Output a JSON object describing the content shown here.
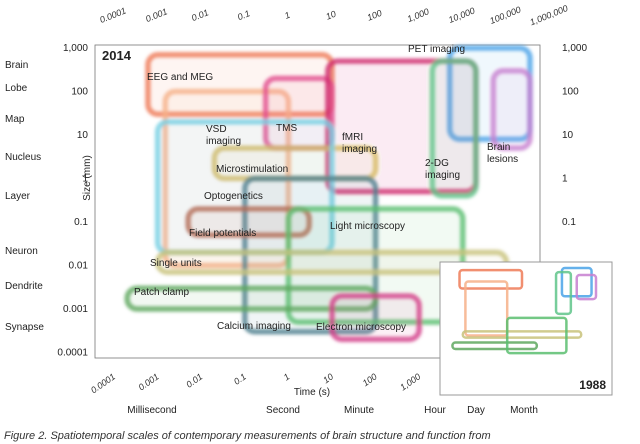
{
  "chart_data": {
    "type": "range-map",
    "panel_year": "2014",
    "inset_year": "1988",
    "xlabel": "Time (s)",
    "ylabel": "Size (mm)",
    "xlim": [
      0.0001,
      1000000
    ],
    "ylim": [
      0.0001,
      1000
    ],
    "log_scale": true,
    "top_ticks": [
      "0.0001",
      "0.001",
      "0.01",
      "0.1",
      "1",
      "10",
      "100",
      "1,000",
      "10,000",
      "100,000",
      "1,000,000"
    ],
    "bottom_ticks": [
      "0.0001",
      "0.001",
      "0.01",
      "0.1",
      "1",
      "10",
      "100",
      "1,000"
    ],
    "side_ticks": [
      "1,000",
      "100",
      "10",
      "1",
      "0.1",
      "0.01",
      "0.001",
      "0.0001"
    ],
    "left_scale_labels": [
      "Brain",
      "Lobe",
      "Map",
      "Nucleus",
      "Layer",
      "Neuron",
      "Dendrite",
      "Synapse"
    ],
    "time_landmarks": [
      "Millisecond",
      "Second",
      "Minute",
      "Hour",
      "Day",
      "Month"
    ],
    "methods": [
      {
        "name": "EEG and MEG",
        "color": "#ef7b57",
        "x": [
          0.0006,
          10
        ],
        "y": [
          30,
          700
        ]
      },
      {
        "name": "PET imaging",
        "color": "#4aa3e8",
        "x": [
          5000,
          500000
        ],
        "y": [
          8,
          1000
        ]
      },
      {
        "name": "VSD imaging",
        "color": "#f6b088",
        "x": [
          0.0015,
          1
        ],
        "y": [
          0.01,
          100
        ]
      },
      {
        "name": "TMS",
        "color": "#e24e8f",
        "x": [
          0.3,
          10
        ],
        "y": [
          5,
          200
        ]
      },
      {
        "name": "fMRI imaging",
        "color": "#cf2a6e",
        "x": [
          8,
          20000
        ],
        "y": [
          0.5,
          500
        ]
      },
      {
        "name": "2-DG imaging",
        "color": "#5fc48a",
        "x": [
          2000,
          20000
        ],
        "y": [
          0.4,
          500
        ]
      },
      {
        "name": "Brain lesions",
        "color": "#c77fd0",
        "x": [
          50000,
          1000000
        ],
        "y": [
          5,
          300
        ]
      },
      {
        "name": "Microstimulation",
        "color": "#d6ba63",
        "x": [
          0.02,
          100
        ],
        "y": [
          1,
          5
        ]
      },
      {
        "name": "Optogenetics",
        "color": "#76cfe4",
        "x": [
          0.001,
          10
        ],
        "y": [
          0.02,
          20
        ]
      },
      {
        "name": "Calcium imaging",
        "color": "#4f7f8f",
        "x": [
          0.1,
          100
        ],
        "y": [
          0.0003,
          1
        ]
      },
      {
        "name": "Field potentials",
        "color": "#b36b55",
        "x": [
          0.005,
          3
        ],
        "y": [
          0.05,
          0.2
        ]
      },
      {
        "name": "Light microscopy",
        "color": "#5abe70",
        "x": [
          1,
          10000
        ],
        "y": [
          0.0005,
          0.2
        ]
      },
      {
        "name": "Single units",
        "color": "#c8c27a",
        "x": [
          0.001,
          100000
        ],
        "y": [
          0.007,
          0.02
        ]
      },
      {
        "name": "Patch clamp",
        "color": "#5ea85f",
        "x": [
          0.0002,
          100
        ],
        "y": [
          0.001,
          0.003
        ]
      },
      {
        "name": "Electron microscopy",
        "color": "#d33e8a",
        "x": [
          10,
          1000
        ],
        "y": [
          0.0002,
          0.002
        ]
      }
    ],
    "inset_boxes": [
      {
        "color": "#ef7b57",
        "x": [
          0.0006,
          10
        ],
        "y": [
          30,
          700
        ]
      },
      {
        "color": "#f6b088",
        "x": [
          0.0015,
          1
        ],
        "y": [
          0.01,
          100
        ]
      },
      {
        "color": "#4aa3e8",
        "x": [
          5000,
          500000
        ],
        "y": [
          8,
          1000
        ]
      },
      {
        "color": "#5fc48a",
        "x": [
          2000,
          20000
        ],
        "y": [
          0.4,
          500
        ]
      },
      {
        "color": "#c77fd0",
        "x": [
          50000,
          1000000
        ],
        "y": [
          5,
          300
        ]
      },
      {
        "color": "#c8c27a",
        "x": [
          0.001,
          100000
        ],
        "y": [
          0.007,
          0.02
        ]
      },
      {
        "color": "#5ea85f",
        "x": [
          0.0002,
          100
        ],
        "y": [
          0.001,
          0.003
        ]
      },
      {
        "color": "#5abe70",
        "x": [
          1,
          10000
        ],
        "y": [
          0.0005,
          0.2
        ]
      }
    ]
  },
  "caption": "Figure 2. Spatiotemporal scales of contemporary measurements of brain structure and function from"
}
